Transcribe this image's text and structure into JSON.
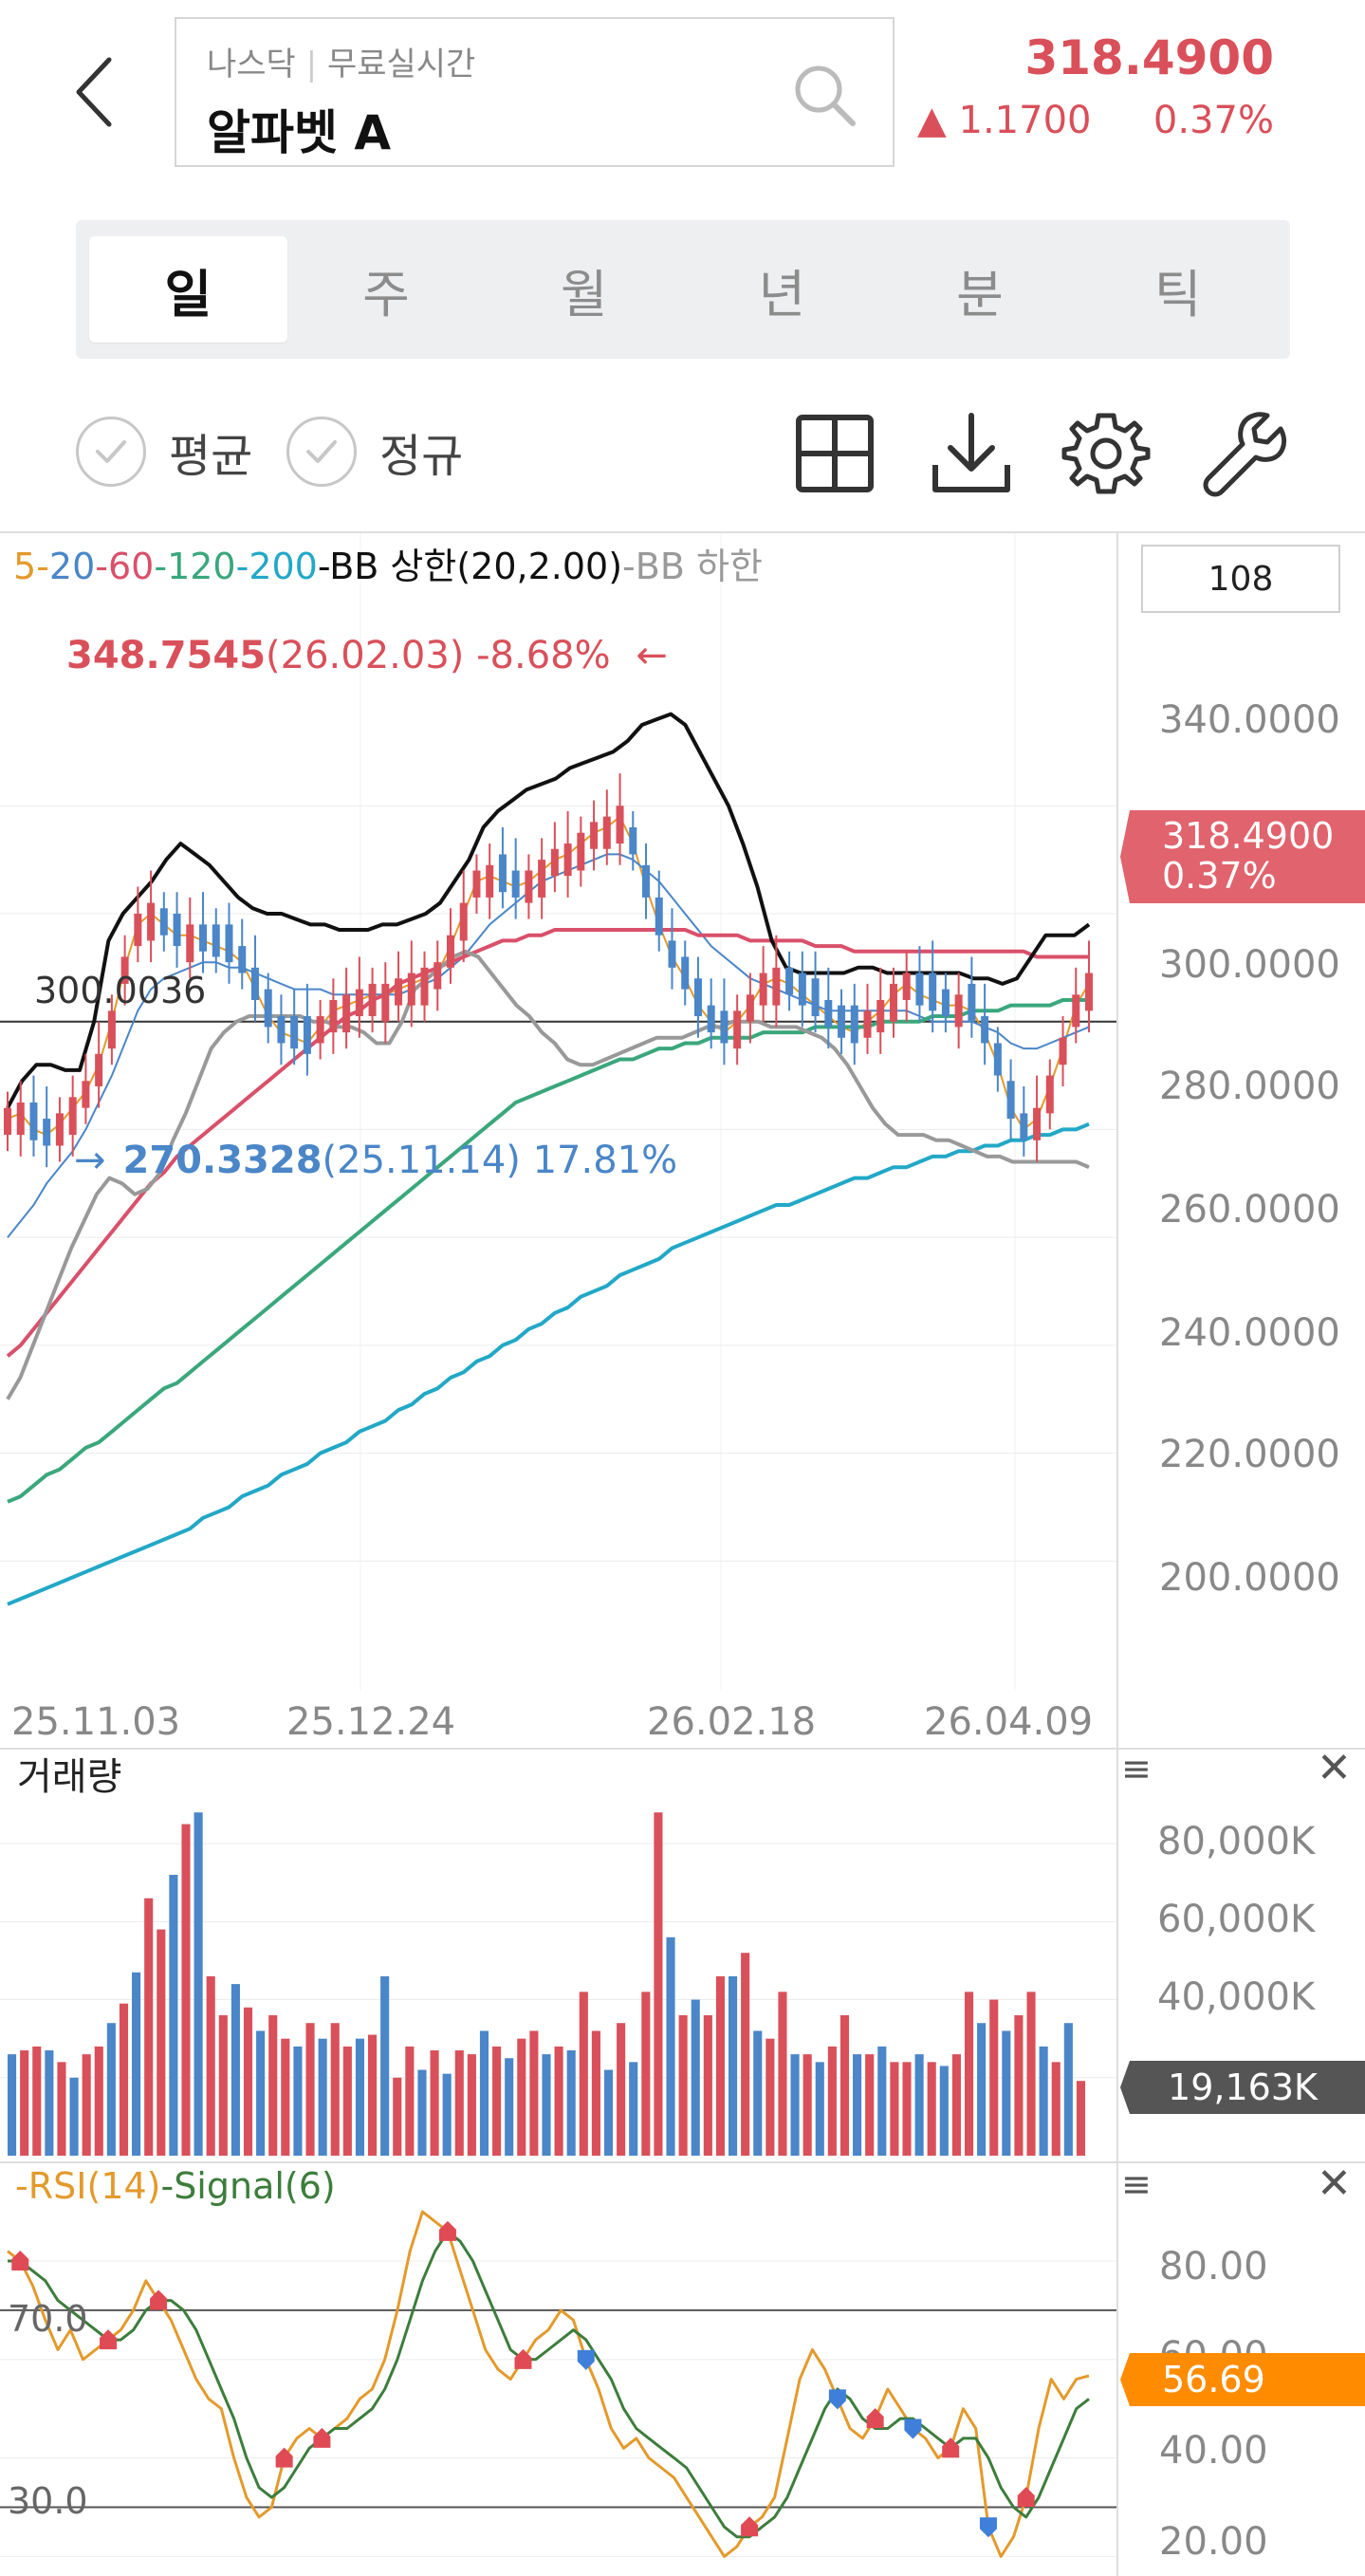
{
  "header": {
    "market": "나스닥",
    "realtime": "무료실시간",
    "stock_name": "알파벳 A",
    "price": "318.4900",
    "change_arrow": "▲",
    "change_value": "1.1700",
    "change_percent": "0.37%"
  },
  "tabs": [
    {
      "label": "일",
      "active": true
    },
    {
      "label": "주",
      "active": false
    },
    {
      "label": "월",
      "active": false
    },
    {
      "label": "년",
      "active": false
    },
    {
      "label": "분",
      "active": false
    },
    {
      "label": "틱",
      "active": false
    }
  ],
  "toolbar": {
    "average_label": "평균",
    "regular_label": "정규",
    "icons": [
      "grid-icon",
      "download-icon",
      "settings-icon",
      "wrench-icon"
    ]
  },
  "price_chart": {
    "legend": [
      {
        "text": "5",
        "color": "#e39a2c"
      },
      {
        "text": "20",
        "color": "#4a86c8"
      },
      {
        "text": "60",
        "color": "#d9506a"
      },
      {
        "text": "120",
        "color": "#3aa77c"
      },
      {
        "text": "200",
        "color": "#22a8c7"
      },
      {
        "text": "BB 상한(20,2.00)",
        "color": "#111111"
      },
      {
        "text": "BB 하한",
        "color": "#999999"
      }
    ],
    "display_count": "108",
    "max_label": {
      "value": "348.7545",
      "date": "(26.02.03)",
      "pct": "-8.68%"
    },
    "min_label": {
      "value": "270.3328",
      "date": "(25.11.14)",
      "pct": "17.81%"
    },
    "crosshair_value": "300.0036",
    "current_price": "318.4900",
    "current_pct": "0.37%",
    "y_ticks": [
      "340.0000",
      "300.0000",
      "280.0000",
      "260.0000",
      "240.0000",
      "220.0000",
      "200.0000"
    ],
    "x_ticks": [
      "25.11.03",
      "25.12.24",
      "26.02.18",
      "26.04.09"
    ]
  },
  "volume_chart": {
    "title": "거래량",
    "y_ticks": [
      "80,000K",
      "60,000K",
      "40,000K"
    ],
    "current": "19,163K"
  },
  "rsi_chart": {
    "legend": [
      {
        "text": "RSI(14)",
        "color": "#e39a2c"
      },
      {
        "text": "Signal(6)",
        "color": "#3c7d3c"
      }
    ],
    "levels": [
      "70.0",
      "30.0"
    ],
    "y_ticks": [
      "80.00",
      "60.00",
      "40.00",
      "20.00"
    ],
    "current": "56.69"
  },
  "colors": {
    "up": "#d9505a",
    "down": "#4a86c8",
    "rsi_badge": "#ff8c00",
    "price_badge": "#e0636d"
  },
  "chart_data": [
    {
      "type": "candlestick",
      "title": "",
      "x_ticks": [
        "25.11.03",
        "25.12.24",
        "26.02.18",
        "26.04.09"
      ],
      "ylim": [
        183,
        387
      ],
      "series": [
        {
          "name": "5",
          "values": [
            282,
            283,
            280,
            279,
            281,
            284,
            287,
            292,
            300,
            310,
            318,
            320,
            318,
            316,
            316,
            315,
            314,
            313,
            311,
            306,
            301,
            298,
            297,
            296,
            299,
            302,
            303,
            304,
            305,
            305,
            306,
            307,
            308,
            309,
            314,
            320,
            326,
            327,
            326,
            325,
            326,
            328,
            330,
            331,
            333,
            335,
            336,
            338,
            333,
            325,
            318,
            312,
            308,
            303,
            300,
            298,
            300,
            303,
            307,
            308,
            307,
            305,
            303,
            301,
            299,
            298,
            300,
            302,
            305,
            307,
            305,
            304,
            303,
            303,
            302,
            298,
            292,
            284,
            280,
            282,
            288,
            295,
            303,
            307
          ]
        },
        {
          "name": "20",
          "values": [
            260,
            263,
            266,
            270,
            273,
            276,
            280,
            285,
            290,
            296,
            302,
            306,
            308,
            309,
            310,
            311,
            311,
            310,
            310,
            309,
            308,
            307,
            306,
            306,
            306,
            305,
            305,
            305,
            305,
            305,
            305,
            306,
            307,
            308,
            310,
            312,
            315,
            318,
            320,
            322,
            324,
            326,
            327,
            328,
            329,
            330,
            331,
            331,
            330,
            328,
            326,
            323,
            320,
            317,
            314,
            312,
            310,
            308,
            307,
            306,
            305,
            304,
            303,
            302,
            302,
            302,
            302,
            302,
            302,
            302,
            301,
            300,
            300,
            300,
            300,
            299,
            298,
            296,
            295,
            295,
            296,
            297,
            298,
            299
          ]
        },
        {
          "name": "60",
          "values": [
            238,
            240,
            243,
            246,
            249,
            252,
            255,
            258,
            261,
            264,
            267,
            270,
            272,
            275,
            277,
            279,
            281,
            283,
            285,
            287,
            289,
            291,
            293,
            295,
            297,
            299,
            301,
            302,
            304,
            305,
            307,
            308,
            309,
            310,
            311,
            312,
            313,
            314,
            315,
            315,
            316,
            316,
            317,
            317,
            317,
            317,
            317,
            317,
            317,
            317,
            317,
            317,
            317,
            316,
            316,
            316,
            316,
            315,
            315,
            315,
            315,
            315,
            314,
            314,
            314,
            313,
            313,
            313,
            313,
            313,
            313,
            313,
            313,
            313,
            313,
            313,
            313,
            313,
            313,
            312,
            312,
            312,
            312,
            312
          ]
        },
        {
          "name": "120",
          "values": [
            211,
            212,
            214,
            216,
            217,
            219,
            221,
            222,
            224,
            226,
            228,
            230,
            232,
            233,
            235,
            237,
            239,
            241,
            243,
            245,
            247,
            249,
            251,
            253,
            255,
            257,
            259,
            261,
            263,
            265,
            267,
            269,
            271,
            273,
            275,
            277,
            279,
            281,
            283,
            285,
            286,
            287,
            288,
            289,
            290,
            291,
            292,
            293,
            293,
            294,
            295,
            295,
            296,
            296,
            297,
            297,
            297,
            297,
            298,
            298,
            298,
            298,
            299,
            299,
            299,
            299,
            299,
            300,
            300,
            300,
            300,
            301,
            301,
            301,
            302,
            302,
            302,
            303,
            303,
            303,
            303,
            304,
            304,
            304
          ]
        },
        {
          "name": "200",
          "values": [
            192,
            193,
            194,
            195,
            196,
            197,
            198,
            199,
            200,
            201,
            202,
            203,
            204,
            205,
            206,
            208,
            209,
            210,
            212,
            213,
            214,
            216,
            217,
            218,
            220,
            221,
            222,
            224,
            225,
            226,
            228,
            229,
            231,
            232,
            234,
            235,
            237,
            238,
            240,
            241,
            243,
            244,
            246,
            247,
            249,
            250,
            251,
            253,
            254,
            255,
            256,
            258,
            259,
            260,
            261,
            262,
            263,
            264,
            265,
            266,
            266,
            267,
            268,
            269,
            270,
            271,
            271,
            272,
            273,
            273,
            274,
            275,
            275,
            276,
            276,
            277,
            277,
            278,
            278,
            279,
            279,
            280,
            280,
            281
          ]
        },
        {
          "name": "BB 상한(20,2.00)",
          "values": [
            284,
            289,
            292,
            292,
            291,
            291,
            300,
            315,
            320,
            323,
            326,
            330,
            333,
            331,
            329,
            326,
            323,
            321,
            320,
            320,
            319,
            318,
            318,
            317,
            317,
            317,
            318,
            318,
            319,
            320,
            322,
            326,
            330,
            336,
            339,
            341,
            343,
            344,
            345,
            347,
            348,
            349,
            350,
            352,
            355,
            356,
            357,
            355,
            350,
            345,
            340,
            333,
            325,
            315,
            310,
            309,
            309,
            309,
            309,
            310,
            310,
            309,
            309,
            309,
            309,
            309,
            309,
            308,
            308,
            307,
            308,
            312,
            316,
            316,
            316,
            318
          ]
        },
        {
          "name": "BB 하한",
          "values": [
            230,
            234,
            240,
            246,
            252,
            258,
            263,
            268,
            271,
            270,
            268,
            269,
            272,
            278,
            283,
            289,
            295,
            298,
            300,
            301,
            301,
            301,
            301,
            301,
            300,
            300,
            299,
            299,
            298,
            296,
            296,
            300,
            306,
            308,
            310,
            312,
            313,
            312,
            309,
            306,
            303,
            301,
            298,
            296,
            293,
            292,
            292,
            293,
            294,
            295,
            296,
            297,
            297,
            297,
            298,
            299,
            299,
            300,
            300,
            300,
            299,
            299,
            299,
            298,
            297,
            295,
            292,
            288,
            284,
            281,
            279,
            279,
            279,
            278,
            278,
            277,
            276,
            275,
            275,
            274,
            274,
            274,
            274,
            274,
            274,
            273
          ]
        }
      ],
      "max": {
        "value": 348.7545,
        "date": "26.02.03"
      },
      "min": {
        "value": 270.3328,
        "date": "25.11.14"
      },
      "last": 318.49
    },
    {
      "type": "bar",
      "title": "거래량",
      "ylim": [
        0,
        90000
      ],
      "values": [
        26000,
        27000,
        28000,
        27000,
        24000,
        20000,
        26000,
        28000,
        34000,
        39000,
        47000,
        66000,
        58000,
        72000,
        85000,
        88000,
        46000,
        36000,
        44000,
        38000,
        32000,
        36000,
        30000,
        28000,
        34000,
        30000,
        34000,
        28000,
        30000,
        31000,
        46000,
        20000,
        28000,
        22000,
        27000,
        21000,
        27000,
        26000,
        32000,
        28000,
        25000,
        30000,
        32000,
        26000,
        28000,
        27000,
        42000,
        32000,
        22000,
        34000,
        24000,
        42000,
        88000,
        56000,
        36000,
        40000,
        36000,
        46000,
        46000,
        52000,
        32000,
        30000,
        42000,
        26000,
        26000,
        24000,
        28000,
        36000,
        26000,
        26000,
        28000,
        24000,
        24000,
        26000,
        24000,
        23000,
        26000,
        42000,
        34000,
        40000,
        32000,
        36000,
        42000,
        28000,
        24000,
        34000,
        19163
      ],
      "colors": "up/down"
    },
    {
      "type": "line",
      "title": "",
      "ylim": [
        17,
        96
      ],
      "levels": [
        70,
        30
      ],
      "series": [
        {
          "name": "RSI(14)",
          "values": [
            82,
            80,
            75,
            68,
            62,
            66,
            60,
            62,
            64,
            66,
            70,
            76,
            72,
            68,
            62,
            56,
            52,
            50,
            40,
            32,
            28,
            30,
            40,
            44,
            46,
            44,
            46,
            48,
            52,
            54,
            60,
            70,
            82,
            90,
            88,
            86,
            78,
            70,
            62,
            58,
            56,
            60,
            64,
            66,
            70,
            68,
            60,
            54,
            46,
            42,
            44,
            40,
            38,
            36,
            32,
            28,
            24,
            20,
            22,
            26,
            28,
            32,
            44,
            56,
            62,
            58,
            52,
            46,
            44,
            48,
            54,
            50,
            46,
            44,
            40,
            42,
            50,
            46,
            26,
            20,
            24,
            32,
            46,
            56,
            52,
            56,
            56.69
          ]
        },
        {
          "name": "Signal(6)",
          "values": [
            80,
            80,
            78,
            76,
            72,
            70,
            68,
            66,
            64,
            64,
            66,
            70,
            72,
            72,
            70,
            66,
            60,
            54,
            48,
            40,
            34,
            32,
            34,
            38,
            42,
            44,
            46,
            46,
            48,
            50,
            54,
            60,
            68,
            76,
            82,
            86,
            84,
            80,
            74,
            68,
            62,
            60,
            60,
            62,
            64,
            66,
            64,
            60,
            56,
            50,
            46,
            44,
            42,
            40,
            38,
            34,
            30,
            26,
            24,
            24,
            26,
            28,
            32,
            38,
            44,
            50,
            54,
            52,
            48,
            46,
            46,
            48,
            48,
            46,
            44,
            42,
            44,
            44,
            40,
            34,
            30,
            28,
            32,
            38,
            44,
            50,
            52
          ]
        }
      ]
    }
  ]
}
